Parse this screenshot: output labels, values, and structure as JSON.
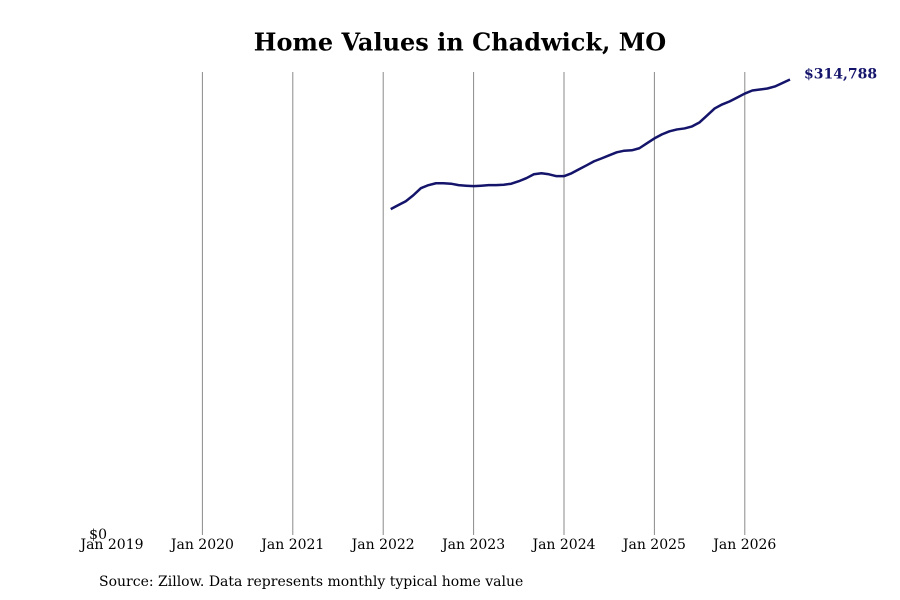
{
  "chart_data": {
    "type": "line",
    "title": "Home Values in Chadwick, MO",
    "source": "Source: Zillow. Data represents monthly typical home value",
    "x": [
      "2022-02",
      "2022-03",
      "2022-04",
      "2022-05",
      "2022-06",
      "2022-07",
      "2022-08",
      "2022-09",
      "2022-10",
      "2022-11",
      "2022-12",
      "2023-01",
      "2023-02",
      "2023-03",
      "2023-04",
      "2023-05",
      "2023-06",
      "2023-07",
      "2023-08",
      "2023-09",
      "2023-10",
      "2023-11",
      "2023-12",
      "2024-01",
      "2024-02",
      "2024-03",
      "2024-04",
      "2024-05",
      "2024-06",
      "2024-07",
      "2024-08",
      "2024-09",
      "2024-10",
      "2024-11",
      "2024-12",
      "2025-01",
      "2025-02",
      "2025-03",
      "2025-04",
      "2025-05",
      "2025-06",
      "2025-07",
      "2025-08",
      "2025-09",
      "2025-10",
      "2025-11",
      "2025-12",
      "2026-01",
      "2026-02",
      "2026-03",
      "2026-04",
      "2026-05",
      "2026-06",
      "2026-07"
    ],
    "series": [
      {
        "name": "Chadwick, MO",
        "color": "#14146b",
        "values": [
          225240,
          228000,
          230700,
          234800,
          239700,
          241800,
          243100,
          243100,
          242800,
          241800,
          241400,
          241100,
          241400,
          241800,
          241800,
          242100,
          242800,
          244500,
          246600,
          249300,
          250000,
          249300,
          248000,
          248000,
          250000,
          252800,
          255500,
          258300,
          260300,
          262400,
          264500,
          265600,
          265900,
          267300,
          270700,
          274100,
          276900,
          279000,
          280300,
          281000,
          282400,
          285200,
          290000,
          294800,
          297600,
          299700,
          302400,
          305100,
          307200,
          307900,
          308600,
          310000,
          312400,
          314788
        ],
        "value_labels": [
          null,
          null,
          null,
          null,
          null,
          null,
          null,
          null,
          null,
          null,
          null,
          null,
          null,
          null,
          null,
          null,
          null,
          null,
          null,
          null,
          null,
          null,
          null,
          null,
          null,
          null,
          null,
          null,
          null,
          null,
          null,
          null,
          null,
          null,
          null,
          null,
          null,
          null,
          null,
          null,
          null,
          null,
          null,
          null,
          null,
          null,
          null,
          null,
          null,
          null,
          null,
          null,
          null,
          "$314,788"
        ]
      }
    ],
    "xlim": [
      "2019-01",
      "2026-07"
    ],
    "xticks": [
      {
        "value": "2019-01",
        "label": "Jan 2019"
      },
      {
        "value": "2020-01",
        "label": "Jan 2020"
      },
      {
        "value": "2021-01",
        "label": "Jan 2021"
      },
      {
        "value": "2022-01",
        "label": "Jan 2022"
      },
      {
        "value": "2023-01",
        "label": "Jan 2023"
      },
      {
        "value": "2024-01",
        "label": "Jan 2024"
      },
      {
        "value": "2025-01",
        "label": "Jan 2025"
      },
      {
        "value": "2026-01",
        "label": "Jan 2026"
      }
    ],
    "ylim": [
      0,
      320000
    ],
    "yticks": [
      {
        "value": 0,
        "label": "$0"
      }
    ],
    "grid": true
  }
}
